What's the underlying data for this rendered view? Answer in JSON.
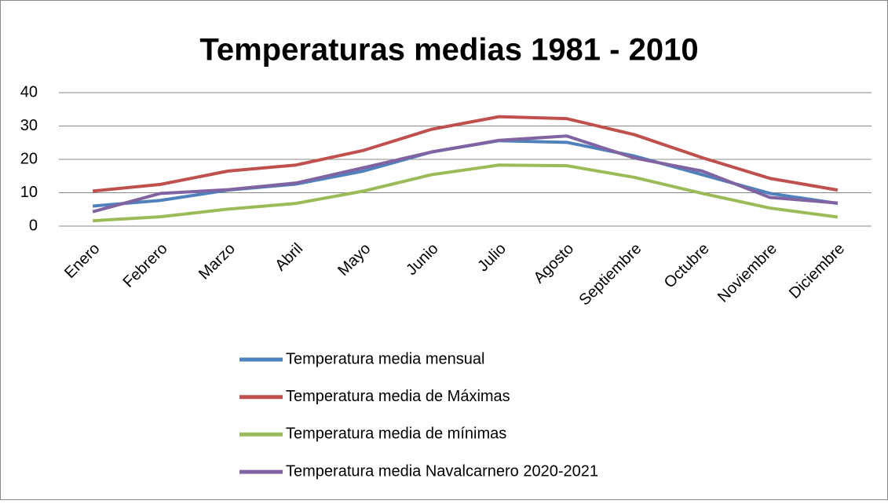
{
  "chart_data": {
    "type": "line",
    "title": "Temperaturas medias 1981 - 2010",
    "categories": [
      "Enero",
      "Febrero",
      "Marzo",
      "Abril",
      "Mayo",
      "Junio",
      "Julio",
      "Agosto",
      "Septiembre",
      "Octubre",
      "Noviembre",
      "Diciembre"
    ],
    "series": [
      {
        "name": "Temperatura media mensual",
        "color": "#4f81bd",
        "values": [
          6,
          7.7,
          10.8,
          12.6,
          16.5,
          22.2,
          25.6,
          25.1,
          21,
          15.4,
          9.8,
          6.8
        ]
      },
      {
        "name": "Temperatura media de Máximas",
        "color": "#c0504d",
        "values": [
          10.5,
          12.5,
          16.5,
          18.3,
          22.7,
          29,
          32.8,
          32.2,
          27.4,
          20.5,
          14.3,
          10.8
        ]
      },
      {
        "name": "Temperatura media de mínimas",
        "color": "#9bbb59",
        "values": [
          1.6,
          2.8,
          5.1,
          6.8,
          10.5,
          15.4,
          18.3,
          18.1,
          14.6,
          9.8,
          5.4,
          2.7
        ]
      },
      {
        "name": "Temperatura media Navalcarnero 2020-2021",
        "color": "#8064a2",
        "values": [
          4.3,
          9.8,
          10.9,
          12.9,
          17.5,
          22.2,
          25.7,
          27,
          20.4,
          16.5,
          8.6,
          6.9
        ]
      }
    ],
    "ylim": [
      0,
      40
    ],
    "yticks": [
      0,
      10,
      20,
      30,
      40
    ],
    "grid": true,
    "legend": "bottom"
  }
}
